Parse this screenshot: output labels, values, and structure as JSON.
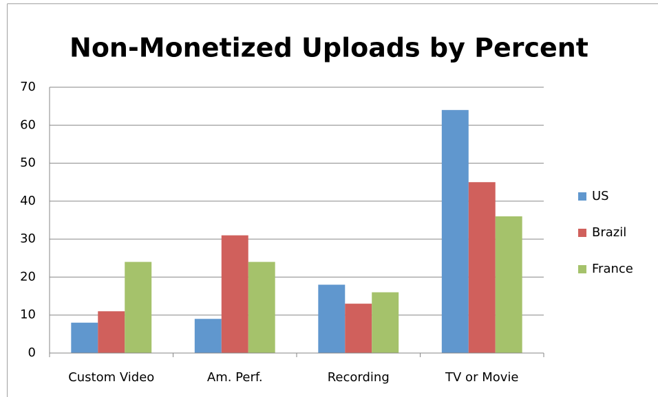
{
  "chart_data": {
    "type": "bar",
    "title": "Non-Monetized Uploads by Percent",
    "categories": [
      "Custom Video",
      "Am. Perf.",
      "Recording",
      "TV or Movie"
    ],
    "series": [
      {
        "name": "US",
        "color": "#6097ce",
        "values": [
          8,
          9,
          18,
          64
        ]
      },
      {
        "name": "Brazil",
        "color": "#d0605c",
        "values": [
          11,
          31,
          13,
          45
        ]
      },
      {
        "name": "France",
        "color": "#a5c26b",
        "values": [
          24,
          24,
          16,
          36
        ]
      }
    ],
    "ylim": [
      0,
      70
    ],
    "yticks": [
      0,
      10,
      20,
      30,
      40,
      50,
      60,
      70
    ],
    "grid": true,
    "legend": "right"
  }
}
